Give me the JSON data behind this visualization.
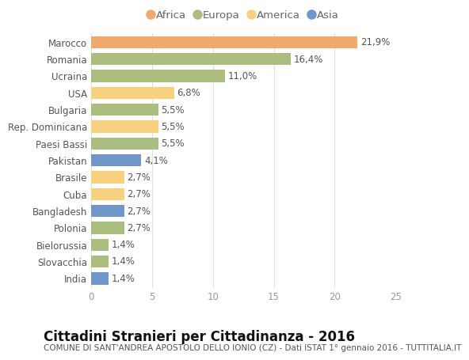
{
  "countries": [
    "Marocco",
    "Romania",
    "Ucraina",
    "USA",
    "Bulgaria",
    "Rep. Dominicana",
    "Paesi Bassi",
    "Pakistan",
    "Brasile",
    "Cuba",
    "Bangladesh",
    "Polonia",
    "Bielorussia",
    "Slovacchia",
    "India"
  ],
  "values": [
    21.9,
    16.4,
    11.0,
    6.8,
    5.5,
    5.5,
    5.5,
    4.1,
    2.7,
    2.7,
    2.7,
    2.7,
    1.4,
    1.4,
    1.4
  ],
  "labels": [
    "21,9%",
    "16,4%",
    "11,0%",
    "6,8%",
    "5,5%",
    "5,5%",
    "5,5%",
    "4,1%",
    "2,7%",
    "2,7%",
    "2,7%",
    "2,7%",
    "1,4%",
    "1,4%",
    "1,4%"
  ],
  "continents": [
    "Africa",
    "Europa",
    "Europa",
    "America",
    "Europa",
    "America",
    "Europa",
    "Asia",
    "America",
    "America",
    "Asia",
    "Europa",
    "Europa",
    "Europa",
    "Asia"
  ],
  "colors": {
    "Africa": "#F2A96D",
    "Europa": "#ABBE80",
    "America": "#F7D080",
    "Asia": "#6F96C8"
  },
  "legend_order": [
    "Africa",
    "Europa",
    "America",
    "Asia"
  ],
  "title": "Cittadini Stranieri per Cittadinanza - 2016",
  "subtitle": "COMUNE DI SANT'ANDREA APOSTOLO DELLO IONIO (CZ) - Dati ISTAT 1° gennaio 2016 - TUTTITALIA.IT",
  "xlim": [
    0,
    25
  ],
  "xticks": [
    0,
    5,
    10,
    15,
    20,
    25
  ],
  "background_color": "#ffffff",
  "grid_color": "#e0e0e0",
  "bar_height": 0.72,
  "title_fontsize": 12,
  "subtitle_fontsize": 7.5,
  "label_fontsize": 8.5,
  "tick_fontsize": 8.5,
  "legend_fontsize": 9.5
}
